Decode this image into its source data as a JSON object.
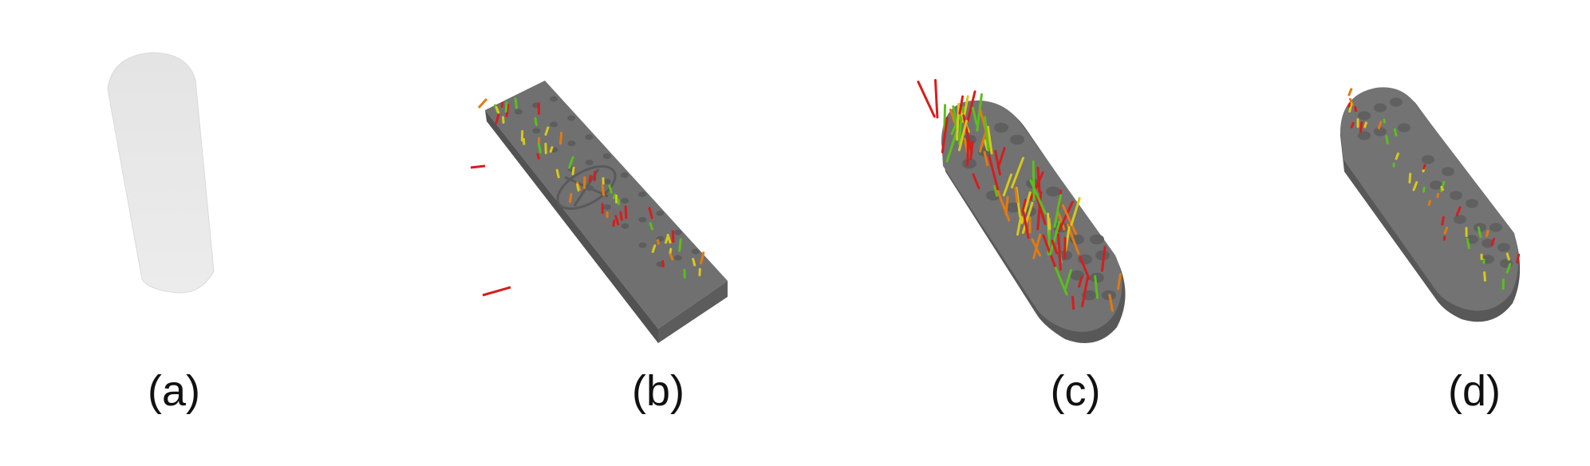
{
  "panels": [
    {
      "label": "(a)"
    },
    {
      "label": "(b)"
    },
    {
      "label": "(c)"
    },
    {
      "label": "(d)"
    }
  ],
  "colors": {
    "model_gray": "#6c6c6c",
    "model_edge": "#4e4e4e",
    "cylinder_light": "#e3e3e3",
    "stick_red": "#d71d1d",
    "stick_orange": "#e37a10",
    "stick_yellow": "#d8c81a",
    "stick_green": "#5bbf1c"
  }
}
